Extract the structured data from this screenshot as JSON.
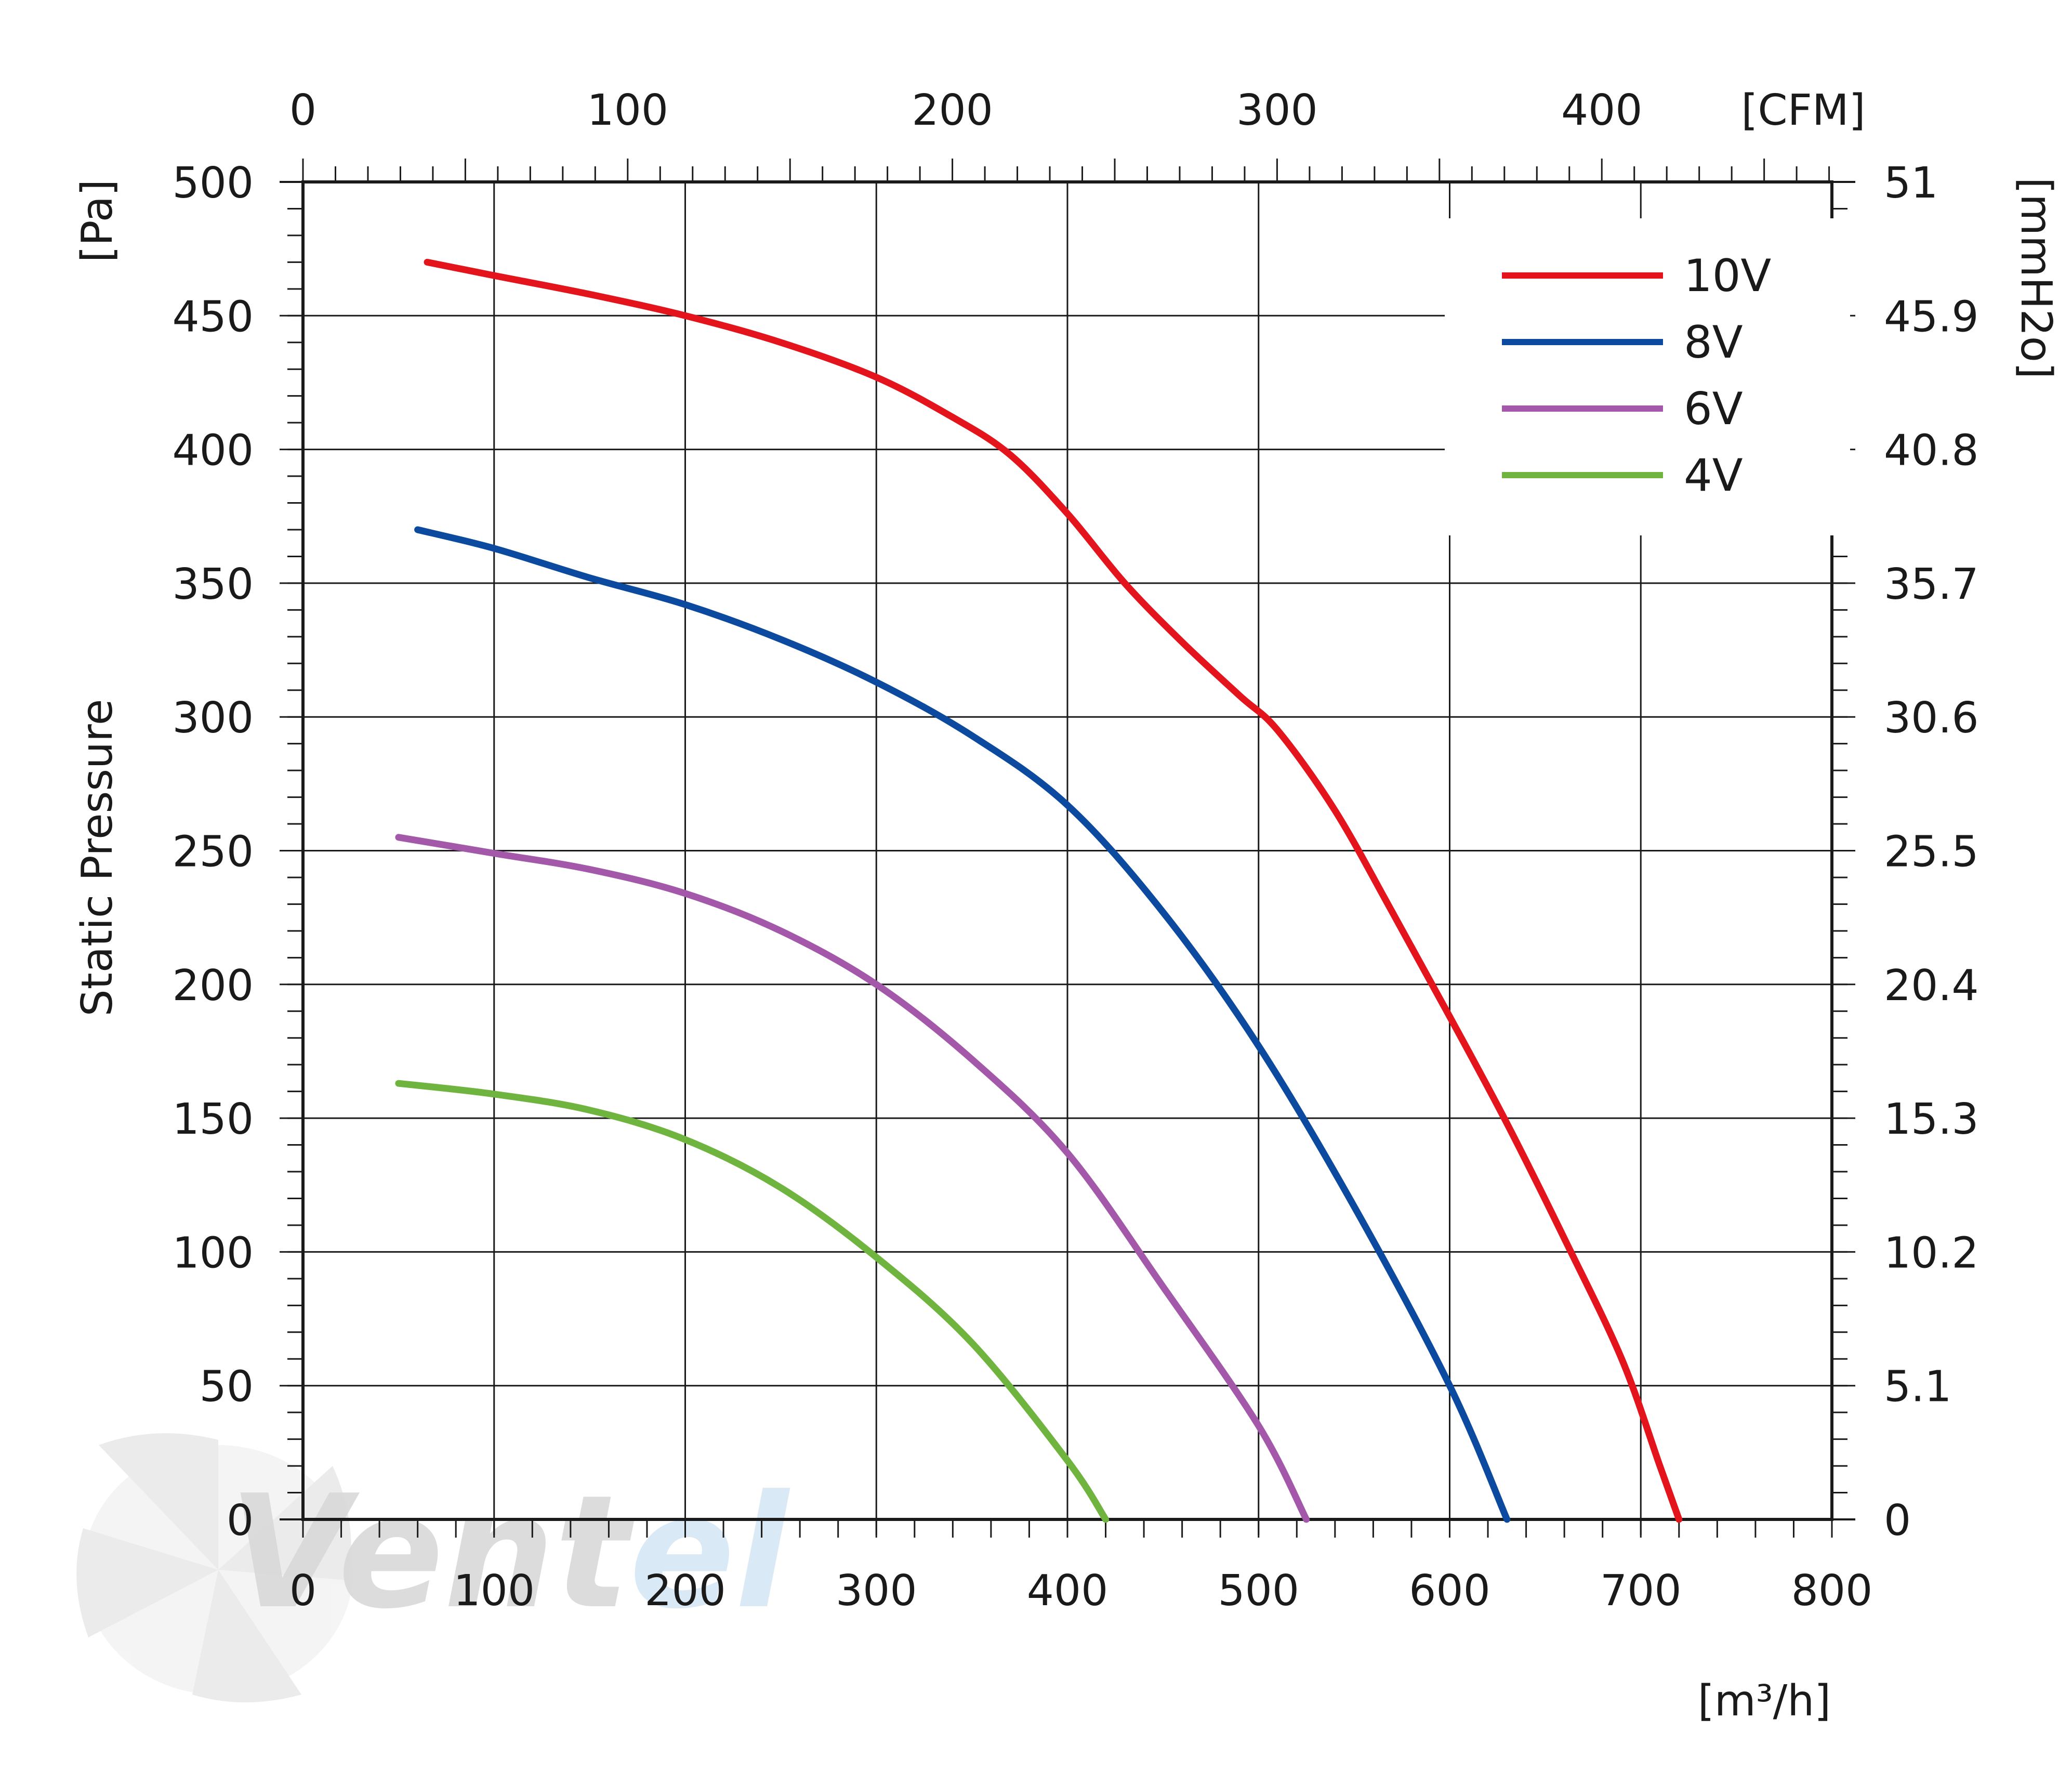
{
  "chart_data": {
    "type": "line",
    "xlabel": "[m³/h]",
    "ylabel": "Static Pressure",
    "y_unit": "[Pa]",
    "x_top_unit": "[CFM]",
    "y_right_unit": "[mmH2o]",
    "xlim": [
      0,
      800
    ],
    "ylim": [
      0,
      500
    ],
    "x_ticks": [
      0,
      100,
      200,
      300,
      400,
      500,
      600,
      700,
      800
    ],
    "y_ticks": [
      0,
      50,
      100,
      150,
      200,
      250,
      300,
      350,
      400,
      450,
      500
    ],
    "x_top_ticks": [
      "0",
      "100",
      "200",
      "300",
      "400"
    ],
    "x_top_values_m3h": [
      0,
      169.9,
      339.8,
      509.7,
      679.6
    ],
    "y_right_ticks": [
      "0",
      "5.1",
      "10.2",
      "15.3",
      "20.4",
      "25.5",
      "30.6",
      "35.7",
      "40.8",
      "45.9",
      "51"
    ],
    "grid": true,
    "legend_position": "top-right",
    "series": [
      {
        "name": "10V",
        "color": "#e3141b",
        "x": [
          65,
          100,
          150,
          200,
          250,
          300,
          340,
          370,
          400,
          430,
          460,
          490,
          510,
          540,
          570,
          600,
          630,
          660,
          690,
          710,
          720
        ],
        "y": [
          470,
          465,
          458,
          450,
          440,
          427,
          412,
          398,
          376,
          350,
          328,
          308,
          295,
          265,
          227,
          188,
          148,
          105,
          60,
          20,
          0
        ]
      },
      {
        "name": "8V",
        "color": "#0b4a9e",
        "x": [
          60,
          100,
          150,
          200,
          250,
          300,
          350,
          400,
          450,
          500,
          550,
          600,
          630
        ],
        "y": [
          370,
          363,
          352,
          342,
          329,
          313,
          293,
          267,
          227,
          177,
          117,
          50,
          0
        ]
      },
      {
        "name": "6V",
        "color": "#a358a9",
        "x": [
          50,
          100,
          150,
          200,
          250,
          300,
          350,
          400,
          450,
          500,
          525
        ],
        "y": [
          255,
          249,
          243,
          234,
          220,
          200,
          172,
          137,
          87,
          35,
          0
        ]
      },
      {
        "name": "4V",
        "color": "#6fb43f",
        "x": [
          50,
          100,
          150,
          200,
          250,
          300,
          350,
          400,
          420
        ],
        "y": [
          163,
          159,
          153,
          142,
          124,
          98,
          66,
          22,
          0
        ]
      }
    ]
  },
  "watermark": {
    "text_dark": "Vent",
    "text_light": "el"
  },
  "colors": {
    "grid": "#1a1a1a",
    "axis": "#1a1a1a",
    "watermark_dark": "#d9d9d9",
    "watermark_light": "#d7e7f6"
  }
}
